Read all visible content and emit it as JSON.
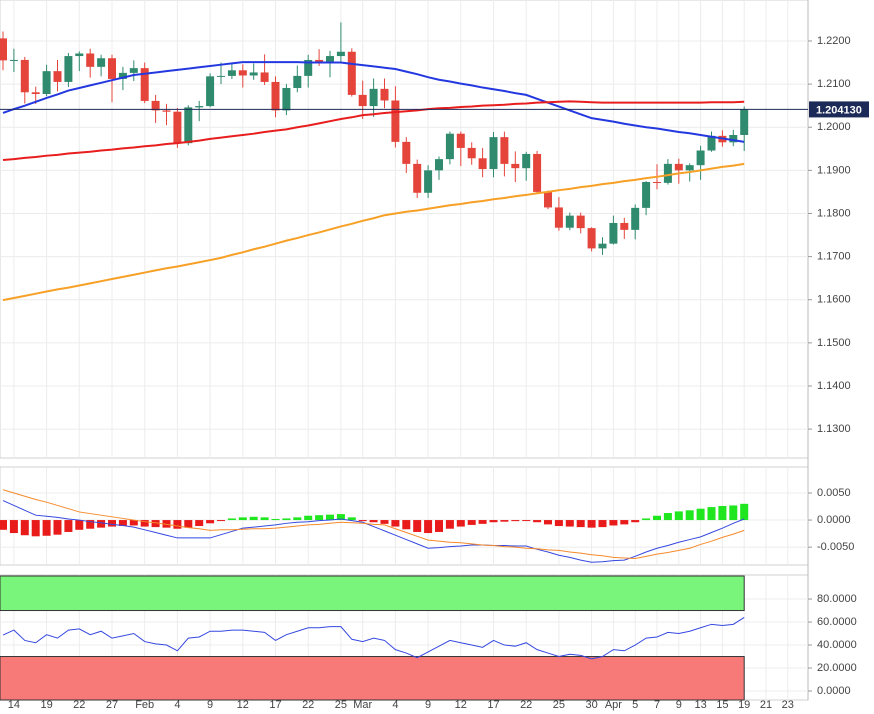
{
  "chart_data": [
    {
      "type": "candlestick",
      "categories": [
        null,
        "14",
        null,
        null,
        "19",
        null,
        null,
        "22",
        null,
        null,
        "27",
        null,
        null,
        "Feb",
        null,
        null,
        "4",
        null,
        null,
        "9",
        null,
        null,
        "12",
        null,
        null,
        "17",
        null,
        null,
        "22",
        null,
        null,
        "25",
        null,
        "Mar",
        null,
        null,
        "4",
        null,
        null,
        "9",
        null,
        null,
        "12",
        null,
        null,
        "17",
        null,
        null,
        "22",
        null,
        null,
        "25",
        null,
        null,
        "30",
        null,
        "Apr",
        null,
        "5",
        null,
        "7",
        null,
        "9",
        null,
        "13",
        null,
        "15",
        null,
        "19",
        null,
        "21",
        null,
        "23"
      ],
      "open": [
        1.2206,
        1.2155,
        1.2156,
        1.2081,
        1.2077,
        1.213,
        1.2105,
        1.2165,
        1.2171,
        1.214,
        1.216,
        1.2112,
        1.2126,
        1.2137,
        1.2061,
        1.2039,
        1.2036,
        1.1963,
        1.2046,
        1.2049,
        1.2118,
        1.2119,
        1.2132,
        1.212,
        1.2127,
        1.2105,
        1.2039,
        1.2091,
        1.2119,
        1.2156,
        1.2149,
        1.2165,
        1.2175,
        1.2075,
        1.2049,
        1.2089,
        1.2062,
        1.1966,
        1.1915,
        1.1848,
        1.19,
        1.1926,
        1.1985,
        1.1952,
        1.1928,
        1.1903,
        1.1977,
        1.1915,
        1.1905,
        1.1938,
        1.185,
        1.1814,
        1.1767,
        1.1795,
        1.1766,
        1.1719,
        1.173,
        1.1778,
        1.1762,
        1.1813,
        1.1873,
        1.1871,
        1.1915,
        1.19,
        1.1912,
        1.1946,
        1.198,
        1.1965,
        1.1982,
        null,
        null,
        null,
        null
      ],
      "high": [
        1.2222,
        1.2182,
        1.2163,
        1.2094,
        1.2145,
        1.2156,
        1.2172,
        1.2176,
        1.2182,
        1.2168,
        1.2168,
        1.214,
        1.2155,
        1.215,
        1.2075,
        1.2054,
        1.2045,
        1.2051,
        1.2061,
        1.2125,
        1.215,
        1.2149,
        1.2146,
        1.2148,
        1.2169,
        1.2118,
        1.21,
        1.2143,
        1.2168,
        1.2181,
        1.2177,
        1.2243,
        1.2183,
        1.2108,
        1.2113,
        1.2113,
        1.2095,
        1.1977,
        1.1925,
        1.1912,
        1.1932,
        1.199,
        1.199,
        1.1965,
        1.1952,
        1.1989,
        1.199,
        1.1944,
        1.1943,
        1.1945,
        1.1853,
        1.1838,
        1.1802,
        1.1802,
        1.1768,
        1.1745,
        1.1795,
        1.179,
        1.1821,
        1.1875,
        1.1914,
        1.1926,
        1.1927,
        1.1916,
        1.1957,
        1.199,
        1.1993,
        1.1994,
        1.2048,
        null,
        null,
        null,
        null
      ],
      "low": [
        1.2132,
        1.2128,
        1.2055,
        1.2054,
        1.2072,
        1.2083,
        1.2093,
        1.213,
        1.2115,
        1.2118,
        1.2058,
        1.2086,
        1.2107,
        1.2056,
        1.201,
        1.2005,
        1.1952,
        1.1958,
        1.2014,
        1.2046,
        1.21,
        1.2112,
        1.2092,
        1.211,
        1.2098,
        1.2023,
        1.2028,
        1.2081,
        1.2092,
        1.2142,
        1.2116,
        1.2151,
        1.2071,
        1.2019,
        1.2024,
        1.2044,
        1.1953,
        1.1894,
        1.1836,
        1.1836,
        1.1878,
        1.1914,
        1.191,
        1.1913,
        1.1884,
        1.1884,
        1.1886,
        1.1873,
        1.1876,
        1.1845,
        1.181,
        1.176,
        1.1761,
        1.1754,
        1.1712,
        1.1704,
        1.1728,
        1.1741,
        1.174,
        1.1796,
        1.1856,
        1.1867,
        1.1869,
        1.1874,
        1.1878,
        1.1943,
        1.1955,
        1.1956,
        1.1945,
        null,
        null,
        null,
        null
      ],
      "close": [
        1.2155,
        1.2156,
        1.2081,
        1.2077,
        1.213,
        1.2105,
        1.2165,
        1.2171,
        1.214,
        1.216,
        1.2112,
        1.2126,
        1.2137,
        1.2061,
        1.2039,
        1.2036,
        1.1963,
        1.2046,
        1.2049,
        1.2118,
        1.2119,
        1.2132,
        1.212,
        1.2127,
        1.2105,
        1.2039,
        1.2091,
        1.2119,
        1.2156,
        1.2149,
        1.2165,
        1.2175,
        1.2075,
        1.2049,
        1.2089,
        1.2062,
        1.1966,
        1.1915,
        1.1848,
        1.19,
        1.1926,
        1.1985,
        1.1952,
        1.1928,
        1.1903,
        1.1977,
        1.1915,
        1.1905,
        1.1938,
        1.185,
        1.1814,
        1.1767,
        1.1795,
        1.1766,
        1.1719,
        1.173,
        1.1778,
        1.1762,
        1.1813,
        1.1873,
        1.1871,
        1.1915,
        1.19,
        1.1912,
        1.1946,
        1.198,
        1.1965,
        1.1982,
        1.2041,
        null,
        null,
        null,
        null
      ],
      "up_color": "#2f8a6e",
      "down_color": "#e5443b",
      "series": [
        {
          "color": "#2438e0",
          "values": [
            1.2033,
            1.2042,
            1.205,
            1.2059,
            1.2068,
            1.2076,
            1.2085,
            1.2091,
            1.2097,
            1.2103,
            1.2109,
            1.2115,
            1.2121,
            1.2124,
            1.2127,
            1.213,
            1.2133,
            1.2136,
            1.2139,
            1.2142,
            1.2145,
            1.2148,
            1.2151,
            1.2151,
            1.2151,
            1.2151,
            1.2151,
            1.2151,
            1.215,
            1.215,
            1.215,
            1.215,
            1.2147,
            1.2144,
            1.2141,
            1.2138,
            1.2135,
            1.2129,
            1.2123,
            1.2116,
            1.211,
            1.2106,
            1.2101,
            1.2097,
            1.2092,
            1.2088,
            1.2084,
            1.2079,
            1.2075,
            1.2066,
            1.2057,
            1.2048,
            1.2039,
            1.203,
            1.2021,
            1.2017,
            1.2013,
            1.2008,
            1.2004,
            1.2,
            1.1997,
            1.1993,
            1.1989,
            1.1986,
            1.1982,
            1.1978,
            1.1974,
            1.197,
            1.1966,
            null,
            null,
            null,
            null
          ]
        },
        {
          "color": "#e81d1d",
          "values": [
            1.1924,
            1.1926,
            1.1929,
            1.1931,
            1.1934,
            1.1936,
            1.1939,
            1.1941,
            1.1943,
            1.1946,
            1.1948,
            1.1951,
            1.1953,
            1.1956,
            1.1958,
            1.1961,
            1.1963,
            1.1966,
            1.1969,
            1.1973,
            1.1976,
            1.1979,
            1.1982,
            1.1985,
            1.1989,
            1.1992,
            1.1995,
            1.2,
            1.2004,
            1.2009,
            1.2014,
            1.2019,
            1.2023,
            1.2028,
            1.203,
            1.2033,
            1.2035,
            1.2037,
            1.2039,
            1.2042,
            1.2044,
            1.2045,
            1.2047,
            1.2048,
            1.205,
            1.2051,
            1.2052,
            1.2054,
            1.2055,
            1.2057,
            1.2058,
            1.2059,
            1.206,
            1.2059,
            1.2058,
            1.2057,
            1.2057,
            1.2057,
            1.2057,
            1.2057,
            1.2057,
            1.2057,
            1.2057,
            1.2057,
            1.2057,
            1.2058,
            1.2058,
            1.2058,
            1.2059,
            null,
            null,
            null,
            null
          ]
        },
        {
          "color": "#f7a026",
          "values": [
            1.1599,
            1.1604,
            1.1609,
            1.1614,
            1.1619,
            1.1624,
            1.1628,
            1.1633,
            1.1638,
            1.1643,
            1.1648,
            1.1653,
            1.1658,
            1.1663,
            1.1668,
            1.1673,
            1.1677,
            1.1682,
            1.1687,
            1.1692,
            1.1697,
            1.1704,
            1.171,
            1.1717,
            1.1723,
            1.173,
            1.1737,
            1.1743,
            1.175,
            1.1756,
            1.1763,
            1.177,
            1.1776,
            1.1783,
            1.1789,
            1.1796,
            1.18,
            1.1804,
            1.1807,
            1.1811,
            1.1815,
            1.1819,
            1.1822,
            1.1826,
            1.1829,
            1.1833,
            1.1836,
            1.184,
            1.1843,
            1.1847,
            1.185,
            1.1854,
            1.1857,
            1.1861,
            1.1864,
            1.1868,
            1.1871,
            1.1875,
            1.1878,
            1.1882,
            1.1885,
            1.1889,
            1.1893,
            1.1896,
            1.19,
            1.1904,
            1.1908,
            1.1911,
            1.1915,
            null,
            null,
            null,
            null
          ]
        }
      ],
      "ylim": [
        1.1233,
        1.2295
      ],
      "yticks": [
        {
          "value": 1.13,
          "label": "1.1300"
        },
        {
          "value": 1.14,
          "label": "1.1400"
        },
        {
          "value": 1.15,
          "label": "1.1500"
        },
        {
          "value": 1.16,
          "label": "1.1600"
        },
        {
          "value": 1.17,
          "label": "1.1700"
        },
        {
          "value": 1.18,
          "label": "1.1800"
        },
        {
          "value": 1.19,
          "label": "1.1900"
        },
        {
          "value": 1.2,
          "label": "1.2000"
        },
        {
          "value": 1.21,
          "label": "1.2100"
        },
        {
          "value": 1.22,
          "label": "1.2200"
        }
      ],
      "grid": true,
      "last_price": {
        "value": 1.20413,
        "label": "1.204130"
      },
      "last_price_color": "#1c2a58"
    },
    {
      "type": "macd",
      "histogram": [
        -0.0018,
        -0.0024,
        -0.0028,
        -0.003,
        -0.0029,
        -0.0027,
        -0.0022,
        -0.0018,
        -0.0016,
        -0.0014,
        -0.0012,
        -0.0011,
        -0.001,
        -0.0012,
        -0.0013,
        -0.0014,
        -0.0016,
        -0.0014,
        -0.0011,
        -0.0006,
        -0.0001,
        0.0003,
        0.0005,
        0.0006,
        0.0005,
        0.0002,
        0.0003,
        0.0005,
        0.0008,
        0.0009,
        0.001,
        0.0011,
        0.0005,
        -0.0002,
        -0.0004,
        -0.0007,
        -0.0012,
        -0.0017,
        -0.0022,
        -0.0024,
        -0.0022,
        -0.0016,
        -0.0012,
        -0.0009,
        -0.0007,
        -0.0004,
        -0.0003,
        -0.0002,
        -0.0001,
        -0.0004,
        -0.0008,
        -0.0011,
        -0.0012,
        -0.0013,
        -0.0014,
        -0.0013,
        -0.001,
        -0.0008,
        -0.0004,
        0.0003,
        0.0008,
        0.0013,
        0.0016,
        0.0018,
        0.0021,
        0.0024,
        0.0026,
        0.0027,
        0.003,
        null,
        null,
        null,
        null
      ],
      "hist_up_color": "#1fe61f",
      "hist_down_color": "#e81a1a",
      "series": [
        {
          "color": "#3548e0",
          "values": [
            0.0036,
            0.0027,
            0.0018,
            0.0009,
            0.0007,
            0.0005,
            0.0002,
            0.0,
            -0.0003,
            -0.0005,
            -0.0008,
            -0.001,
            -0.0013,
            -0.0018,
            -0.0023,
            -0.0028,
            -0.0033,
            -0.0033,
            -0.0033,
            -0.0033,
            -0.0027,
            -0.0021,
            -0.0015,
            -0.0013,
            -0.0011,
            -0.0009,
            -0.0006,
            -0.0004,
            -0.0003,
            -0.0001,
            0.0,
            0.0002,
            -0.0001,
            -0.0004,
            -0.0012,
            -0.002,
            -0.0028,
            -0.0036,
            -0.0044,
            -0.0052,
            -0.0051,
            -0.0049,
            -0.0048,
            -0.0046,
            -0.0046,
            -0.0047,
            -0.0047,
            -0.0048,
            -0.0048,
            -0.0054,
            -0.0059,
            -0.0065,
            -0.0069,
            -0.0074,
            -0.0078,
            -0.0077,
            -0.0075,
            -0.0074,
            -0.0067,
            -0.0059,
            -0.0052,
            -0.0047,
            -0.0041,
            -0.0036,
            -0.0031,
            -0.0023,
            -0.0015,
            -0.0006,
            0.0002,
            null,
            null,
            null,
            null
          ]
        },
        {
          "color": "#f58a2a",
          "values": [
            0.0056,
            0.005,
            0.0044,
            0.0038,
            0.0033,
            0.0027,
            0.0021,
            0.0015,
            0.0012,
            0.0009,
            0.0006,
            0.0003,
            0.0,
            -0.0003,
            -0.0005,
            -0.0008,
            -0.0011,
            -0.0014,
            -0.0016,
            -0.0019,
            -0.0018,
            -0.0018,
            -0.0017,
            -0.0016,
            -0.0016,
            -0.0015,
            -0.0013,
            -0.0011,
            -0.0009,
            -0.0008,
            -0.0006,
            -0.0004,
            -0.0005,
            -0.0006,
            -0.0008,
            -0.0009,
            -0.0016,
            -0.0023,
            -0.003,
            -0.0037,
            -0.0039,
            -0.0041,
            -0.0042,
            -0.0044,
            -0.0046,
            -0.0047,
            -0.0049,
            -0.005,
            -0.0052,
            -0.0053,
            -0.0055,
            -0.0056,
            -0.0059,
            -0.0061,
            -0.0064,
            -0.0066,
            -0.0069,
            -0.007,
            -0.0071,
            -0.0067,
            -0.0063,
            -0.006,
            -0.0056,
            -0.0052,
            -0.0045,
            -0.0039,
            -0.0032,
            -0.0026,
            -0.0019,
            null,
            null,
            null,
            null
          ]
        }
      ],
      "ylim": [
        -0.0083,
        0.0098
      ],
      "yticks": [
        {
          "value": -0.005,
          "label": "-0.0050"
        },
        {
          "value": 0,
          "label": "0.0000"
        },
        {
          "value": 0.005,
          "label": "0.0050"
        }
      ],
      "grid": true
    },
    {
      "type": "rsi",
      "values": [
        48.7,
        53,
        44,
        42,
        49,
        46,
        53,
        54,
        49,
        52,
        46,
        48,
        50,
        43,
        41,
        40,
        35,
        46,
        47,
        52,
        52,
        53,
        53,
        52,
        51,
        44,
        49,
        52,
        55,
        55,
        56,
        56,
        45,
        43,
        46,
        44,
        36,
        33,
        29,
        34,
        39,
        44,
        42,
        40,
        38,
        44,
        40,
        39,
        42,
        36,
        33,
        30,
        32,
        31,
        28,
        30,
        36,
        35,
        40,
        46,
        47,
        51,
        50,
        52,
        55,
        58,
        57,
        58,
        64,
        null,
        null,
        null,
        null
      ],
      "color": "#3548e0",
      "overbought": 70,
      "oversold": 30,
      "overbought_color": "#78f57a",
      "oversold_color": "#f77a78",
      "ylim": [
        -7.8,
        100.9
      ],
      "yticks": [
        {
          "value": 0,
          "label": "0.0000"
        },
        {
          "value": 20,
          "label": "20.0000"
        },
        {
          "value": 40,
          "label": "40.0000"
        },
        {
          "value": 60,
          "label": "60.0000"
        },
        {
          "value": 80,
          "label": "80.0000"
        }
      ],
      "grid": true
    }
  ]
}
